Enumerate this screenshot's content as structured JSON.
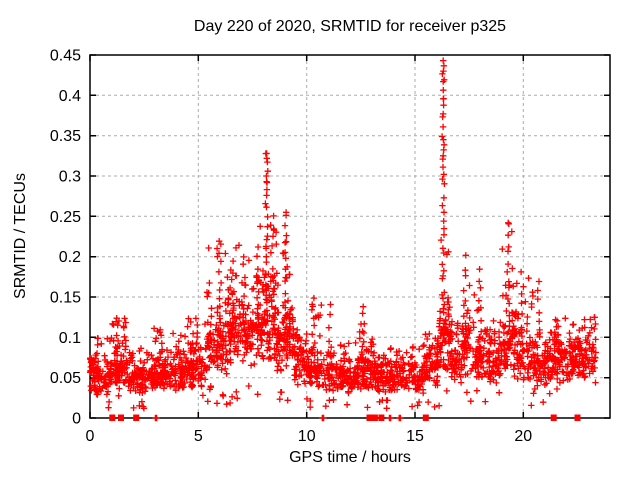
{
  "title": "Day 220 of 2020, SRMTID for receiver p325",
  "x_axis": {
    "label": "GPS time / hours",
    "tick_labels": [
      "0",
      "5",
      "10",
      "15",
      "20"
    ],
    "tick_values": [
      0,
      5,
      10,
      15,
      20
    ]
  },
  "y_axis": {
    "label": "SRMTID / TECUs",
    "tick_labels": [
      "0",
      "0.05",
      "0.1",
      "0.15",
      "0.2",
      "0.25",
      "0.3",
      "0.35",
      "0.4",
      "0.45"
    ],
    "tick_values": [
      0,
      0.05,
      0.1,
      0.15,
      0.2,
      0.25,
      0.3,
      0.35,
      0.4,
      0.45
    ]
  },
  "colors": {
    "marker": "#ff0000",
    "grid": "#ababab",
    "axis": "#000000",
    "background": "#ffffff",
    "text": "#000000"
  },
  "chart_data": {
    "type": "scatter",
    "marker": "plus",
    "title": "Day 220 of 2020, SRMTID for receiver p325",
    "xlabel": "GPS time / hours",
    "ylabel": "SRMTID / TECUs",
    "xlim": [
      0,
      24
    ],
    "ylim": [
      0,
      0.45
    ],
    "grid": true,
    "legend": false,
    "seed": 20200807,
    "description": "Dense scatter (~2500 pts): baseline 0.03-0.09 TECU all day; broad peak 5.5-9.5 h up to 0.33 at 8.1 h; sharp spike at 16.3 h up to 0.443; secondary peaks near 17.3, 19.3, 20-21 h up to 0.24; scattered zero values near 1-3, 10.8, 12.9-14.3, 15.5, 21.4, 22.5 h",
    "segments_format": "[x_start, x_end, count, y_low, y_mode, y_high]",
    "segments": [
      [
        0.0,
        0.35,
        40,
        0.03,
        0.055,
        0.078
      ],
      [
        0.3,
        1.0,
        70,
        0.022,
        0.048,
        0.1
      ],
      [
        1.0,
        1.7,
        80,
        0.03,
        0.06,
        0.125
      ],
      [
        1.7,
        2.6,
        90,
        0.025,
        0.05,
        0.095
      ],
      [
        2.6,
        3.4,
        80,
        0.03,
        0.055,
        0.115
      ],
      [
        3.4,
        4.4,
        100,
        0.03,
        0.055,
        0.105
      ],
      [
        4.4,
        5.4,
        100,
        0.035,
        0.062,
        0.13
      ],
      [
        5.4,
        6.4,
        110,
        0.04,
        0.09,
        0.225
      ],
      [
        6.4,
        7.6,
        130,
        0.045,
        0.105,
        0.215
      ],
      [
        7.6,
        8.6,
        120,
        0.04,
        0.115,
        0.26
      ],
      [
        8.6,
        9.4,
        100,
        0.04,
        0.095,
        0.235
      ],
      [
        9.4,
        10.1,
        70,
        0.03,
        0.065,
        0.12
      ],
      [
        10.1,
        10.7,
        60,
        0.03,
        0.055,
        0.15
      ],
      [
        10.7,
        12.4,
        150,
        0.025,
        0.05,
        0.095
      ],
      [
        12.4,
        13.1,
        70,
        0.028,
        0.055,
        0.135
      ],
      [
        13.1,
        15.4,
        200,
        0.025,
        0.05,
        0.09
      ],
      [
        15.4,
        16.1,
        70,
        0.03,
        0.06,
        0.12
      ],
      [
        16.1,
        16.65,
        70,
        0.045,
        0.1,
        0.24
      ],
      [
        16.65,
        17.15,
        50,
        0.04,
        0.07,
        0.12
      ],
      [
        17.15,
        17.55,
        45,
        0.045,
        0.09,
        0.2
      ],
      [
        17.55,
        19.0,
        130,
        0.035,
        0.07,
        0.155
      ],
      [
        19.0,
        19.55,
        55,
        0.045,
        0.095,
        0.235
      ],
      [
        19.55,
        20.45,
        85,
        0.04,
        0.075,
        0.175
      ],
      [
        20.45,
        21.25,
        80,
        0.04,
        0.065,
        0.115
      ],
      [
        21.25,
        22.1,
        75,
        0.04,
        0.07,
        0.13
      ],
      [
        22.1,
        23.35,
        110,
        0.04,
        0.072,
        0.125
      ]
    ],
    "columns_format": "[x_center, y_bottom, y_top, count]",
    "columns": [
      [
        0.05,
        0.068,
        0.074,
        6
      ],
      [
        1.25,
        0.08,
        0.122,
        6
      ],
      [
        3.3,
        0.075,
        0.112,
        5
      ],
      [
        6.0,
        0.1,
        0.228,
        12
      ],
      [
        6.55,
        0.1,
        0.2,
        8
      ],
      [
        7.1,
        0.1,
        0.21,
        8
      ],
      [
        7.75,
        0.1,
        0.22,
        8
      ],
      [
        8.15,
        0.13,
        0.33,
        18
      ],
      [
        8.4,
        0.11,
        0.25,
        10
      ],
      [
        9.05,
        0.11,
        0.255,
        14
      ],
      [
        10.3,
        0.06,
        0.158,
        8
      ],
      [
        11.05,
        0.06,
        0.15,
        6
      ],
      [
        12.6,
        0.05,
        0.145,
        8
      ],
      [
        16.3,
        0.1,
        0.443,
        32
      ],
      [
        17.3,
        0.08,
        0.205,
        10
      ],
      [
        18.0,
        0.08,
        0.19,
        9
      ],
      [
        19.3,
        0.09,
        0.243,
        14
      ],
      [
        19.95,
        0.08,
        0.185,
        8
      ],
      [
        20.7,
        0.08,
        0.175,
        8
      ],
      [
        21.5,
        0.06,
        0.128,
        7
      ],
      [
        22.55,
        0.05,
        0.115,
        7
      ],
      [
        22.85,
        0.06,
        0.125,
        6
      ]
    ],
    "notable_points": [
      [
        16.3,
        0.443
      ],
      [
        16.31,
        0.43
      ],
      [
        16.3,
        0.417
      ],
      [
        16.32,
        0.396
      ],
      [
        16.3,
        0.377
      ],
      [
        16.31,
        0.345
      ],
      [
        16.3,
        0.325
      ],
      [
        16.33,
        0.302
      ],
      [
        8.15,
        0.328
      ],
      [
        8.16,
        0.322
      ],
      [
        8.14,
        0.3
      ],
      [
        8.15,
        0.293
      ],
      [
        8.15,
        0.276
      ],
      [
        9.05,
        0.255
      ],
      [
        19.3,
        0.242
      ]
    ],
    "zeros_bold": [
      1.03,
      1.43,
      2.13,
      12.9,
      13.15,
      13.45,
      15.5,
      21.4,
      22.5
    ],
    "zeros_light": [
      3.02,
      3.08,
      10.72,
      10.78,
      13.82,
      13.88,
      14.27,
      14.33
    ]
  }
}
